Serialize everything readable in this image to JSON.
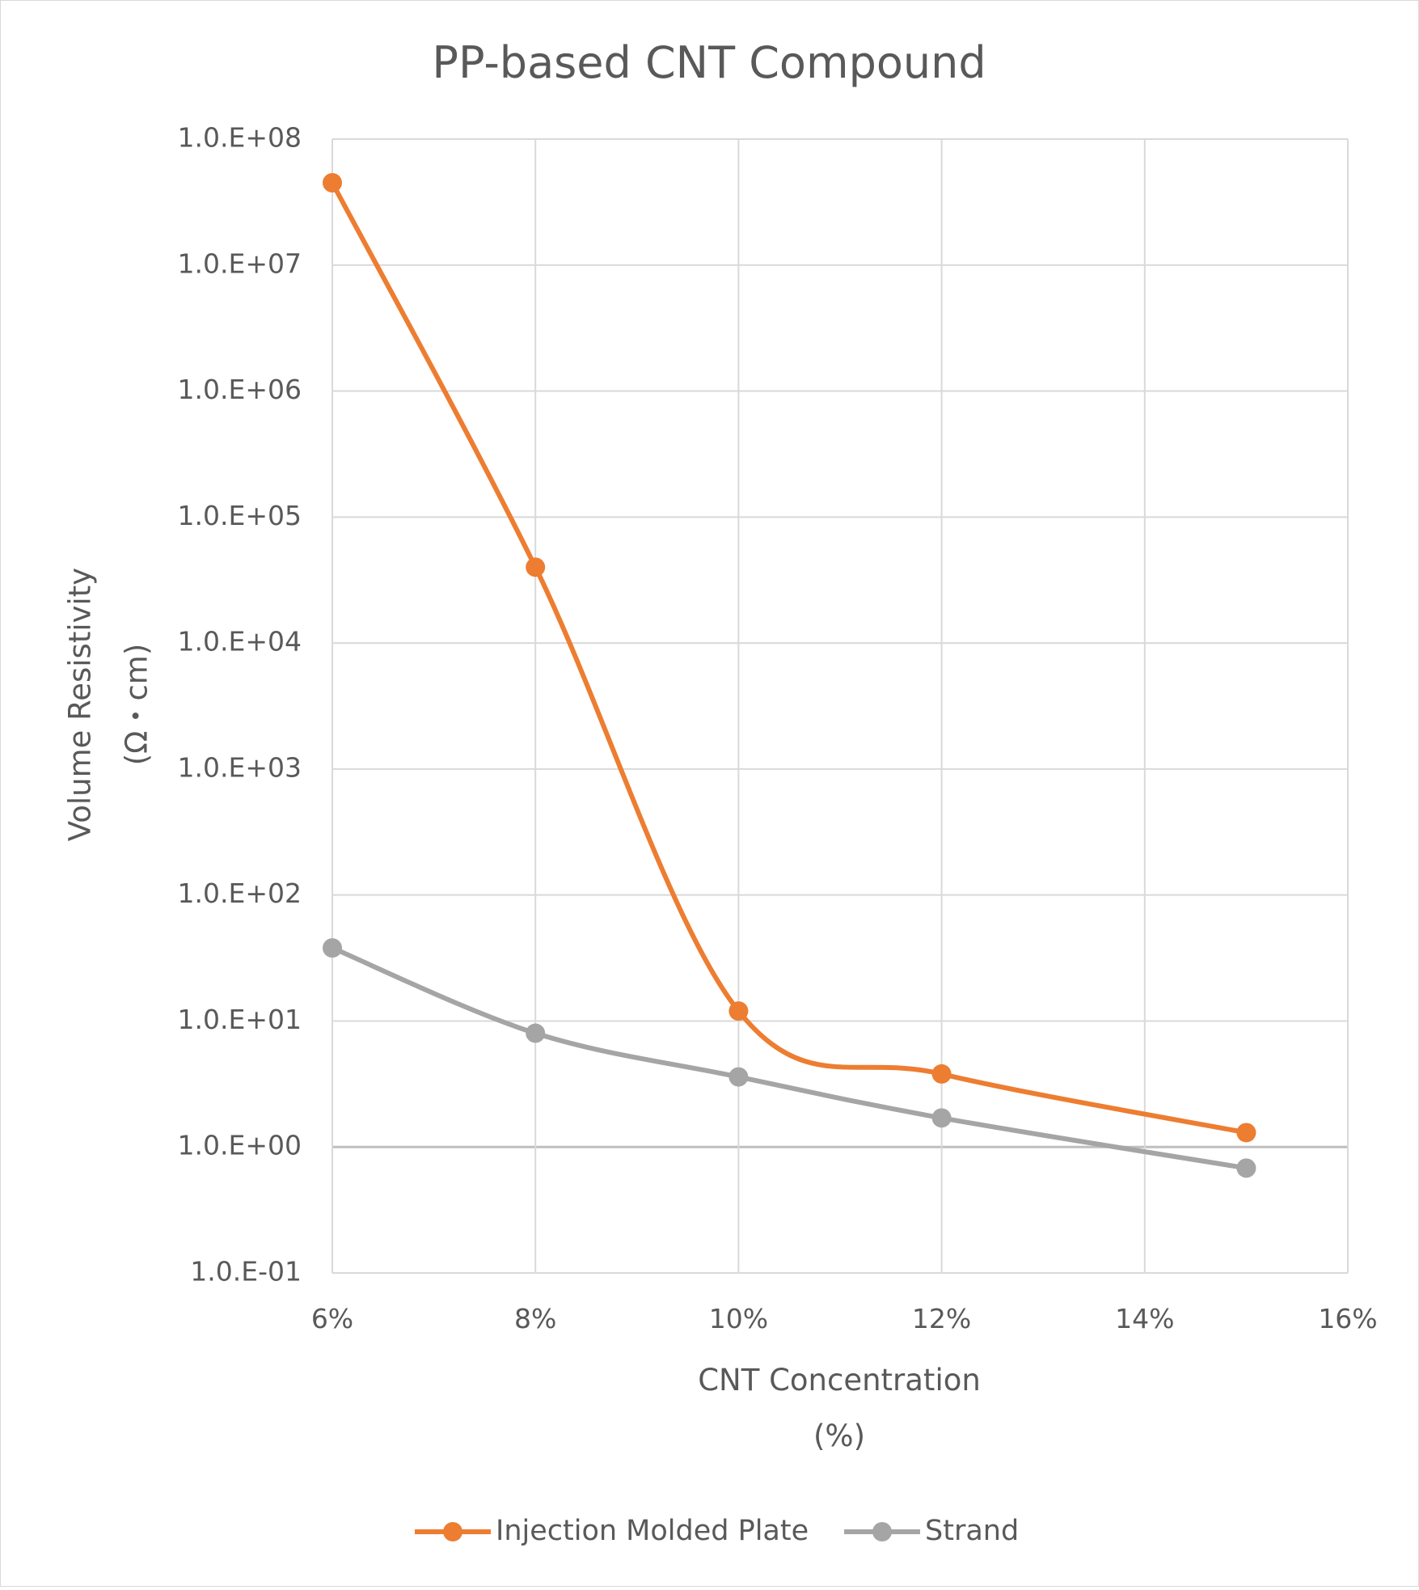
{
  "chart_data": {
    "type": "line",
    "title": "PP-based CNT Compound",
    "xlabel": [
      "CNT Concentration",
      "(%)"
    ],
    "ylabel": [
      "Volume Resistivity",
      "(Ω・cm)"
    ],
    "x_ticks": [
      "6%",
      "8%",
      "10%",
      "12%",
      "14%",
      "16%"
    ],
    "y_ticks": [
      "1.0.E-01",
      "1.0.E+00",
      "1.0.E+01",
      "1.0.E+02",
      "1.0.E+03",
      "1.0.E+04",
      "1.0.E+05",
      "1.0.E+06",
      "1.0.E+07",
      "1.0.E+08"
    ],
    "xlim": [
      6,
      16
    ],
    "ylim": [
      0.1,
      100000000
    ],
    "y_scale": "log",
    "grid": true,
    "legend_position": "bottom",
    "series": [
      {
        "name": "Injection Molded Plate",
        "color": "#ed7d31",
        "x": [
          6,
          8,
          10,
          12,
          15
        ],
        "values": [
          45000000,
          40000,
          12,
          3.8,
          1.3
        ]
      },
      {
        "name": "Strand",
        "color": "#a5a5a5",
        "x": [
          6,
          8,
          10,
          12,
          15
        ],
        "values": [
          38,
          8,
          3.6,
          1.7,
          0.68
        ]
      }
    ]
  }
}
